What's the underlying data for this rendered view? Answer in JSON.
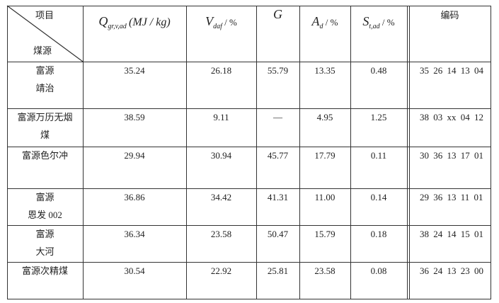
{
  "header": {
    "corner": {
      "top": "项目",
      "bottom": "煤源"
    },
    "columns": [
      {
        "symbol": "Q",
        "sub": "gr,v,ad",
        "unit": "(MJ / kg)"
      },
      {
        "symbol": "V",
        "sub": "daf",
        "unit": "/ %"
      },
      {
        "symbol": "G"
      },
      {
        "symbol": "A",
        "sub": "d",
        "unit": "/ %"
      },
      {
        "symbol": "S",
        "sub": "t,ad",
        "unit": "/ %"
      },
      {
        "text": "编码"
      }
    ]
  },
  "rows": [
    {
      "name": [
        "富源",
        "靖治"
      ],
      "cells": [
        "35.24",
        "26.18",
        "55.79",
        "13.35",
        "0.48",
        "35 26 14 13 04"
      ]
    },
    {
      "name": [
        "富源万历无烟",
        "煤"
      ],
      "cells": [
        "38.59",
        "9.11",
        "—",
        "4.95",
        "1.25",
        "38 03 xx 04 12"
      ]
    },
    {
      "name": [
        "富源色尔冲"
      ],
      "cells": [
        "29.94",
        "30.94",
        "45.77",
        "17.79",
        "0.11",
        "30 36 13 17 01"
      ]
    },
    {
      "name": [
        "富源",
        "恩发 002"
      ],
      "cells": [
        "36.86",
        "34.42",
        "41.31",
        "11.00",
        "0.14",
        "29 36 13 11 01"
      ]
    },
    {
      "name": [
        "富源",
        "大河"
      ],
      "cells": [
        "36.34",
        "23.58",
        "50.47",
        "15.79",
        "0.18",
        "38 24 14 15 01"
      ]
    },
    {
      "name": [
        "富源次精煤"
      ],
      "cells": [
        "30.54",
        "22.92",
        "25.81",
        "23.58",
        "0.08",
        "36 24 13 23 00"
      ]
    }
  ]
}
